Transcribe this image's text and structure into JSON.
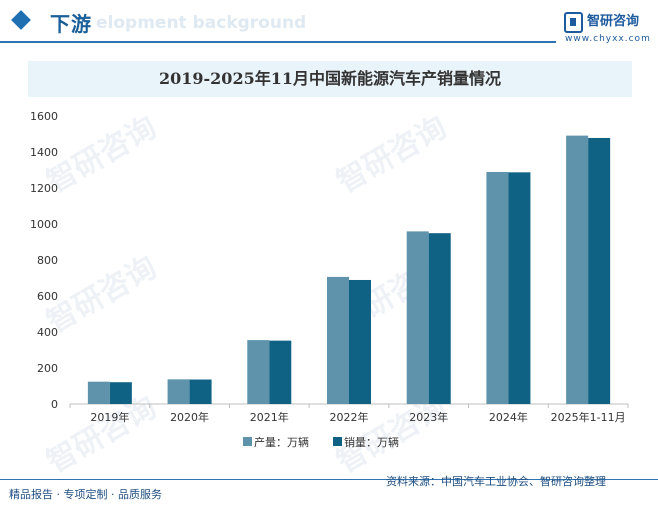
{
  "header": {
    "section_title": "下游",
    "section_subtitle": "elopment background",
    "logo_name": "智研咨询",
    "logo_url": "www.chyxx.com"
  },
  "watermark": {
    "text": "智研咨询"
  },
  "chart_data": {
    "type": "bar",
    "title": "2019-2025年11月中国新能源汽车产销量情况",
    "categories": [
      "2019年",
      "2020年",
      "2021年",
      "2022年",
      "2023年",
      "2024年",
      "2025年1-11月"
    ],
    "series": [
      {
        "name": "产量：万辆",
        "color": "#5f93ab",
        "values": [
          124,
          137,
          355,
          706,
          959,
          1289,
          1491
        ]
      },
      {
        "name": "销量：万辆",
        "color": "#0f6284",
        "values": [
          121,
          136,
          352,
          689,
          949,
          1287,
          1478
        ]
      }
    ],
    "yticks": [
      0,
      200,
      400,
      600,
      800,
      1000,
      1200,
      1400,
      1600
    ],
    "ylim": [
      0,
      1600
    ],
    "xlabel": "",
    "ylabel": "",
    "grid": false,
    "legend": "bottom"
  },
  "footer": {
    "left": "精品报告 · 专项定制 · 品质服务",
    "source": "资料来源：中国汽车工业协会、智研咨询整理"
  }
}
